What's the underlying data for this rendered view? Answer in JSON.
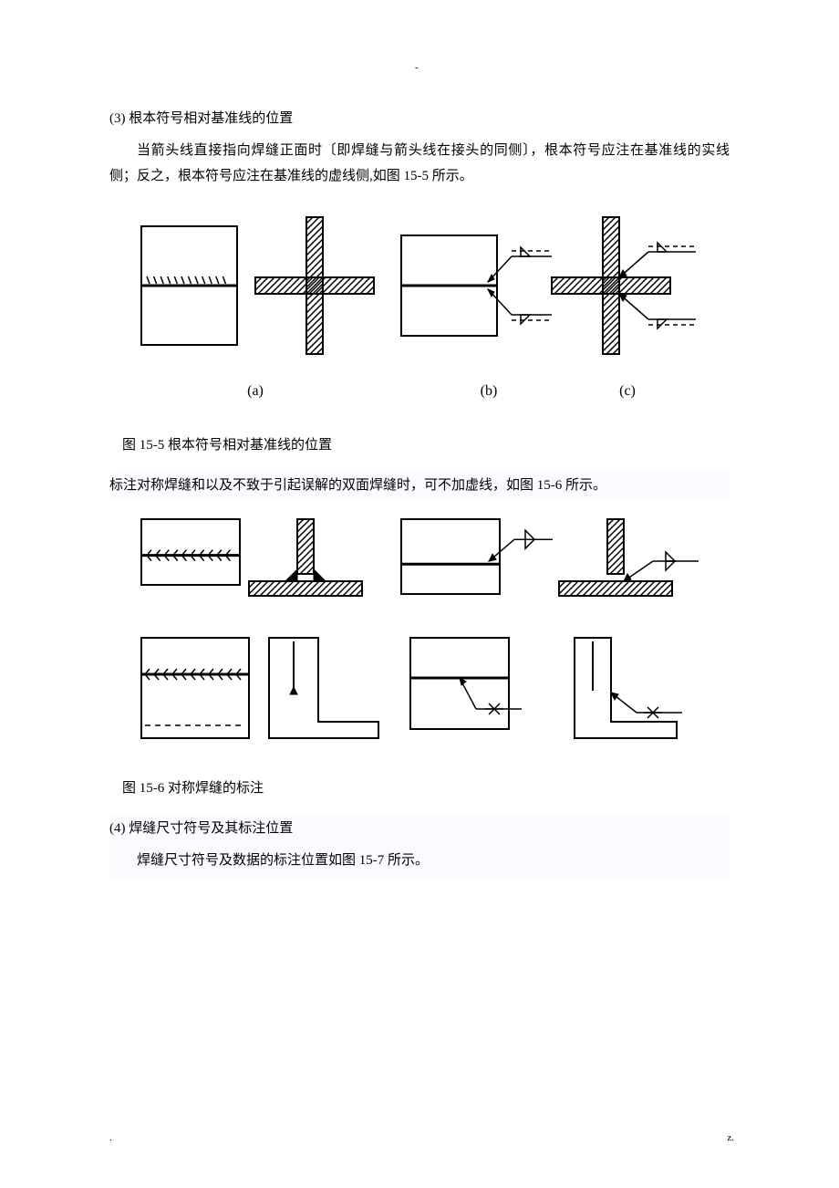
{
  "header_mark": "-",
  "section3_num": "(3)",
  "section3_title": "根本符号相对基准线的位置",
  "section3_body": "当箭头线直接指向焊缝正面时〔即焊缝与箭头线在接头的同侧〕，根本符号应注在基准线的实线侧；反之，根本符号应注在基准线的虚线侧,如图 15-5 所示。",
  "fig15_5": {
    "caption": "图 15-5  根本符号相对基准线的位置",
    "labels": {
      "a": "(a)",
      "b": "(b)",
      "c": "(c)"
    },
    "colors": {
      "stroke": "#000000",
      "bg": "#ffffff"
    },
    "thin": 2,
    "thick": 3,
    "hatch_space": 7
  },
  "mid_note": "标注对称焊缝和以及不致于引起误解的双面焊缝时，可不加虚线，如图 15-6 所示。",
  "fig15_6": {
    "caption": "图 15-6  对称焊缝的标注",
    "colors": {
      "stroke": "#000000",
      "bg": "#ffffff"
    },
    "thin": 2,
    "thick": 3
  },
  "section4_num": "(4)",
  "section4_title": "焊缝尺寸符号及其标注位置",
  "section4_body": "焊缝尺寸符号及数据的标注位置如图 15-7 所示。",
  "footer_dot": ".",
  "footer_z": "z."
}
